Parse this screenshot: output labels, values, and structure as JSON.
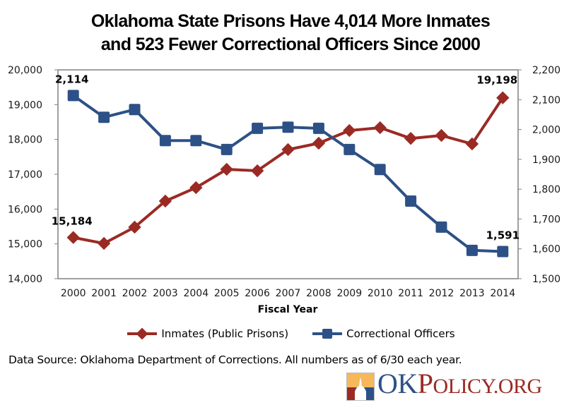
{
  "title_lines": [
    "Oklahoma State Prisons Have 4,014 More Inmates",
    "and 523 Fewer Correctional Officers Since 2000"
  ],
  "chart_data": {
    "type": "line",
    "title": "Oklahoma State Prisons Have 4,014 More Inmates and 523 Fewer Correctional Officers Since 2000",
    "xlabel": "Fiscal Year",
    "categories": [
      "2000",
      "2001",
      "2002",
      "2003",
      "2004",
      "2005",
      "2006",
      "2007",
      "2008",
      "2009",
      "2010",
      "2011",
      "2012",
      "2013",
      "2014"
    ],
    "y_left": {
      "ylim": [
        14000,
        20000
      ],
      "ticks": [
        14000,
        15000,
        16000,
        17000,
        18000,
        19000,
        20000
      ],
      "tick_labels": [
        "14,000",
        "15,000",
        "16,000",
        "17,000",
        "18,000",
        "19,000",
        "20,000"
      ]
    },
    "y_right": {
      "ylim": [
        1500,
        2200
      ],
      "ticks": [
        1500,
        1600,
        1700,
        1800,
        1900,
        2000,
        2100,
        2200
      ],
      "tick_labels": [
        "1,500",
        "1,600",
        "1,700",
        "1,800",
        "1,900",
        "2,000",
        "2,100",
        "2,200"
      ]
    },
    "series": [
      {
        "name": "Inmates (Public Prisons)",
        "axis": "left",
        "color": "#9b2a24",
        "marker": "diamond",
        "values": [
          15184,
          15014,
          15480,
          16230,
          16615,
          17142,
          17101,
          17710,
          17892,
          18257,
          18338,
          18030,
          18115,
          17872,
          19198
        ]
      },
      {
        "name": "Correctional Officers",
        "axis": "right",
        "color": "#2d5186",
        "marker": "square",
        "values": [
          2114,
          2041,
          2067,
          1963,
          1963,
          1933,
          2004,
          2008,
          2004,
          1933,
          1866,
          1760,
          1673,
          1595,
          1591
        ]
      }
    ],
    "annotations": [
      {
        "series": 1,
        "index": 0,
        "text": "2,114"
      },
      {
        "series": 0,
        "index": 0,
        "text": "15,184"
      },
      {
        "series": 0,
        "index": 14,
        "text": "19,198"
      },
      {
        "series": 1,
        "index": 14,
        "text": "1,591"
      }
    ],
    "legend_position": "bottom",
    "grid": false
  },
  "legend": [
    {
      "label": "Inmates (Public Prisons)",
      "icon": "diamond-marker-icon",
      "color": "#9b2a24"
    },
    {
      "label": "Correctional Officers",
      "icon": "square-marker-icon",
      "color": "#2d5186"
    }
  ],
  "source_note": "Data Source: Oklahoma Department of Corrections. All numbers as of 6/30 each year.",
  "logo": {
    "text": "OKPolicy.org",
    "part_ok": "OK",
    "part_p": "P",
    "part_olicy": "OLICY",
    "part_org": ".ORG",
    "colors": {
      "blue": "#2d5186",
      "red": "#9b2a24",
      "gold": "#f6b85a"
    }
  }
}
